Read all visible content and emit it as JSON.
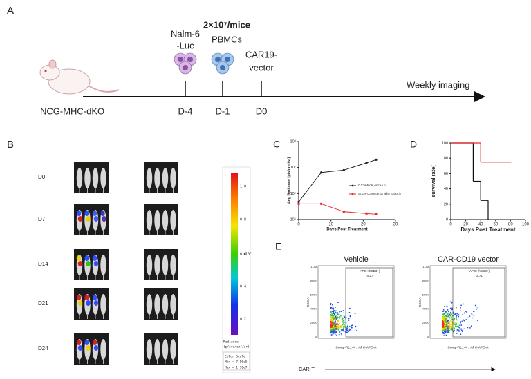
{
  "panel_a": {
    "label": "A",
    "mouse": "NCG-MHC-dKO",
    "events": [
      {
        "lines": [
          "Nalm-6",
          "-Luc"
        ],
        "day": "D-4"
      },
      {
        "lines": [
          "2×10⁷/mice",
          "PBMCs"
        ],
        "day": "D-1"
      },
      {
        "lines": [
          "CAR19-",
          "vector"
        ],
        "day": "D0"
      }
    ],
    "timeline": "Weekly imaging"
  },
  "panel_b": {
    "label": "B",
    "rows": [
      "D0",
      "D7",
      "D14",
      "D21",
      "D24"
    ],
    "scale_ticks": [
      "1.0",
      "0.8",
      "0.6",
      "0.4",
      "0.2"
    ],
    "scale_unit": "x10⁷",
    "scale_title": "Radiance",
    "scale_units": "(p/sec/cm²/sr)",
    "scale_caption": "Color Scale",
    "scale_min": "Min = 7.56e5",
    "scale_max": "Max = 1.10e7"
  },
  "chart_data": [
    {
      "type": "line",
      "label": "C",
      "ylabel": "Avg Radiance [p/s/cm²/sr]",
      "xlabel": "Days Post Treatment",
      "log_y": true,
      "xlim": [
        0,
        30
      ],
      "xticks": [
        0,
        10,
        20,
        30
      ],
      "ylim": [
        100000,
        100000000
      ],
      "yticks": [
        {
          "value": 100000,
          "label": "10⁵"
        },
        {
          "value": 1000000,
          "label": "10⁶"
        },
        {
          "value": 10000000,
          "label": "10⁷"
        },
        {
          "value": 100000000,
          "label": "10⁸"
        }
      ],
      "x": [
        0,
        7,
        14,
        21,
        24
      ],
      "series": [
        {
          "name": "G1:Vehicle,once,i.p",
          "color": "#222222",
          "values": [
            480000,
            6500000,
            8000000,
            15000000,
            20000000
          ]
        },
        {
          "name": "G2: CAR-CD19 vector,100 million TU,once,i.p",
          "color": "#e8262a",
          "values": [
            400000,
            400000,
            200000,
            170000,
            160000
          ]
        }
      ]
    },
    {
      "type": "step",
      "label": "D",
      "ylabel": "survival rate(",
      "xlabel": "Days Post Treatment",
      "xlim": [
        0,
        100
      ],
      "xticks": [
        0,
        20,
        40,
        60,
        80,
        100
      ],
      "ylim": [
        0,
        100
      ],
      "yticks": [
        0,
        20,
        40,
        60,
        80,
        100
      ],
      "series": [
        {
          "color": "#111111",
          "x": [
            0,
            30,
            40,
            50
          ],
          "values": [
            100,
            50,
            25,
            0
          ]
        },
        {
          "color": "#e8262a",
          "x": [
            0,
            40,
            80
          ],
          "values": [
            100,
            75,
            75
          ]
        }
      ]
    }
  ],
  "panel_e": {
    "label": "E",
    "plots": [
      {
        "title": "Vehicle",
        "gate": "APC+(hCD3+)",
        "percent": "0.27"
      },
      {
        "title": "CAR-CD19 vector",
        "gate": "APC+(hCD3+)",
        "percent": "2.71"
      }
    ],
    "yaxis": "SSC-A",
    "xaxis": "Comp-RL1-A :: APC-APC-A",
    "yticks": [
      "1.0M",
      "800K",
      "600K",
      "400K",
      "200K",
      "0"
    ],
    "footer": "CAR-T"
  }
}
